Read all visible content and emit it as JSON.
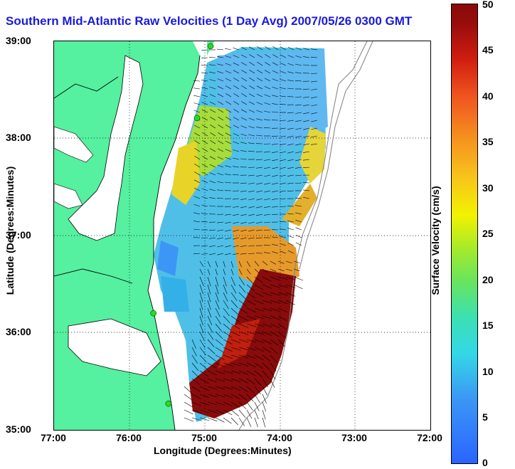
{
  "title": "Southern Mid-Atlantic Raw Velocities (1 Day Avg) 2007/05/26 0300 GMT",
  "x_axis": {
    "label": "Longitude (Degrees:Minutes)",
    "ticks": [
      "77:00",
      "76:00",
      "75:00",
      "74:00",
      "73:00",
      "72:00"
    ]
  },
  "y_axis": {
    "label": "Latitude (Degrees:Minutes)",
    "ticks": [
      "39:00",
      "38:00",
      "37:00",
      "36:00",
      "35:00"
    ]
  },
  "colorbar": {
    "label": "Surface Velocity (cm/s)",
    "ticks": [
      "50",
      "45",
      "40",
      "35",
      "30",
      "25",
      "20",
      "15",
      "10",
      "5",
      "0"
    ],
    "range": [
      0,
      50
    ]
  },
  "colors": {
    "land": "#55f0a0",
    "title": "#1a1adc",
    "station": "#22dd22"
  },
  "map": {
    "lon_range": [
      -77,
      -72
    ],
    "lat_range": [
      35,
      39
    ],
    "stations": [
      {
        "lon": -74.92,
        "lat": 38.95
      },
      {
        "lon": -75.1,
        "lat": 38.21
      },
      {
        "lon": -75.68,
        "lat": 36.2
      },
      {
        "lon": -75.48,
        "lat": 35.27
      }
    ]
  }
}
